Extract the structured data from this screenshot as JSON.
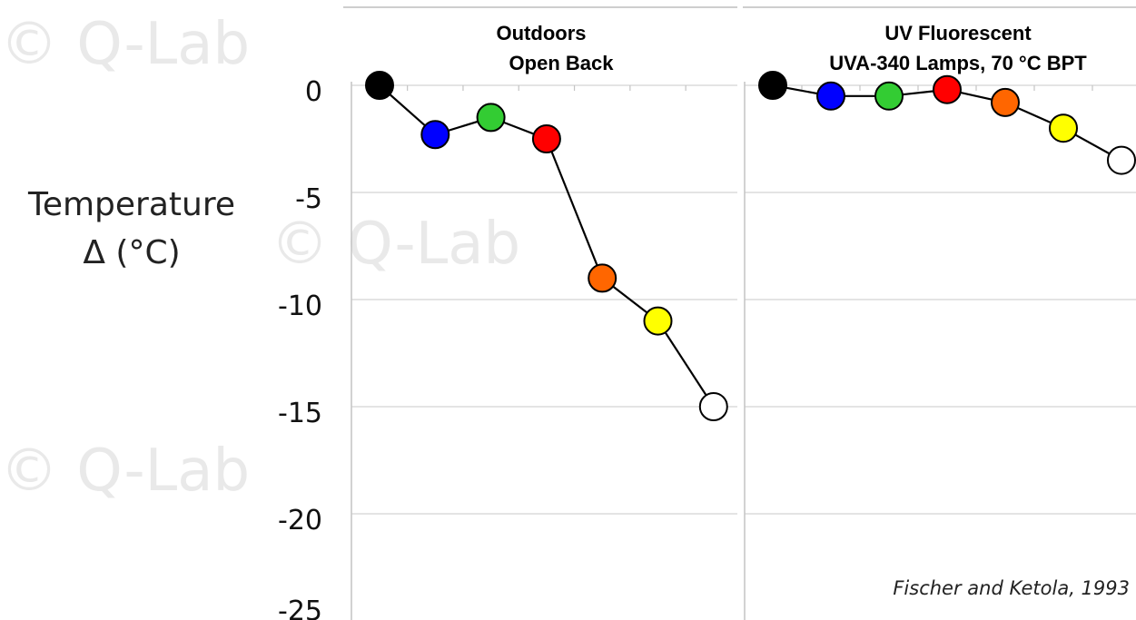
{
  "watermark": "© Q-Lab",
  "y_axis": {
    "label_line1": "Temperature",
    "label_line2": "Δ (°C)",
    "ticks": [
      "0",
      "-5",
      "-10",
      "-15",
      "-20",
      "-25"
    ]
  },
  "citation": "Fischer and Ketola, 1993",
  "chart_data": [
    {
      "type": "scatter",
      "title_line1": "Outdoors",
      "title_line2": "Open Back",
      "ylim": [
        -25,
        0
      ],
      "grid": true,
      "series": [
        {
          "x": [
            1,
            2,
            3,
            4,
            5,
            6,
            7
          ],
          "values": [
            0,
            -2.3,
            -1.5,
            -2.5,
            -9,
            -11,
            -15
          ],
          "colors": [
            "#000000",
            "#0000ff",
            "#33cc33",
            "#ff0000",
            "#ff6600",
            "#ffff00",
            "#ffffff"
          ]
        }
      ]
    },
    {
      "type": "scatter",
      "title_line1": "UV Fluorescent",
      "title_line2": "UVA-340 Lamps, 70 °C BPT",
      "ylim": [
        -25,
        0
      ],
      "grid": true,
      "series": [
        {
          "x": [
            1,
            2,
            3,
            4,
            5,
            6,
            7
          ],
          "values": [
            0,
            -0.5,
            -0.5,
            -0.2,
            -0.8,
            -2,
            -3.5
          ],
          "colors": [
            "#000000",
            "#0000ff",
            "#33cc33",
            "#ff0000",
            "#ff6600",
            "#ffff00",
            "#ffffff"
          ]
        }
      ]
    }
  ]
}
